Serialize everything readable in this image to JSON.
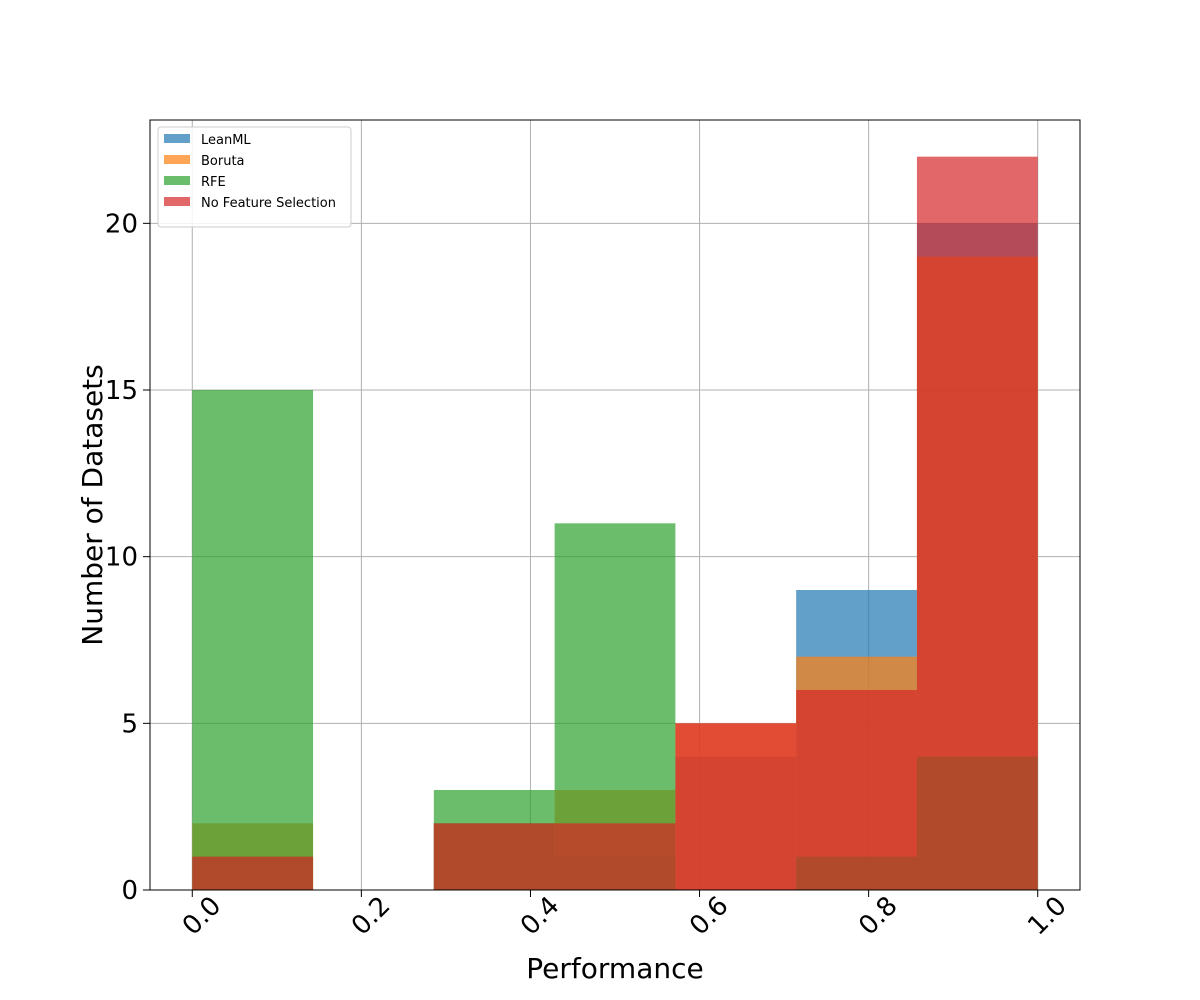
{
  "chart_data": {
    "type": "bar",
    "subtype": "overlapping-histogram",
    "title": "",
    "xlabel": "Performance",
    "ylabel": "Number of Datasets",
    "xlim": [
      -0.05,
      1.05
    ],
    "ylim": [
      0,
      23.1
    ],
    "xticks": [
      0.0,
      0.2,
      0.4,
      0.6,
      0.8,
      1.0
    ],
    "xtick_labels": [
      "0.0",
      "0.2",
      "0.4",
      "0.6",
      "0.8",
      "1.0"
    ],
    "yticks": [
      0,
      5,
      10,
      15,
      20
    ],
    "ytick_labels": [
      "0",
      "5",
      "10",
      "15",
      "20"
    ],
    "grid": true,
    "legend_position": "top-left",
    "bin_edges": [
      0.0,
      0.142857,
      0.285714,
      0.428571,
      0.571429,
      0.714286,
      0.857143,
      1.0
    ],
    "series": [
      {
        "name": "LeanML",
        "color": "#1f77b4",
        "values": [
          1,
          0,
          2,
          1,
          4,
          9,
          20
        ]
      },
      {
        "name": "Boruta",
        "color": "#ff7f0e",
        "values": [
          2,
          0,
          2,
          3,
          5,
          7,
          19
        ]
      },
      {
        "name": "RFE",
        "color": "#2ca02c",
        "values": [
          15,
          0,
          3,
          11,
          0,
          1,
          4
        ]
      },
      {
        "name": "No Feature Selection",
        "color": "#d62728",
        "values": [
          1,
          0,
          2,
          2,
          5,
          6,
          22
        ]
      }
    ]
  }
}
